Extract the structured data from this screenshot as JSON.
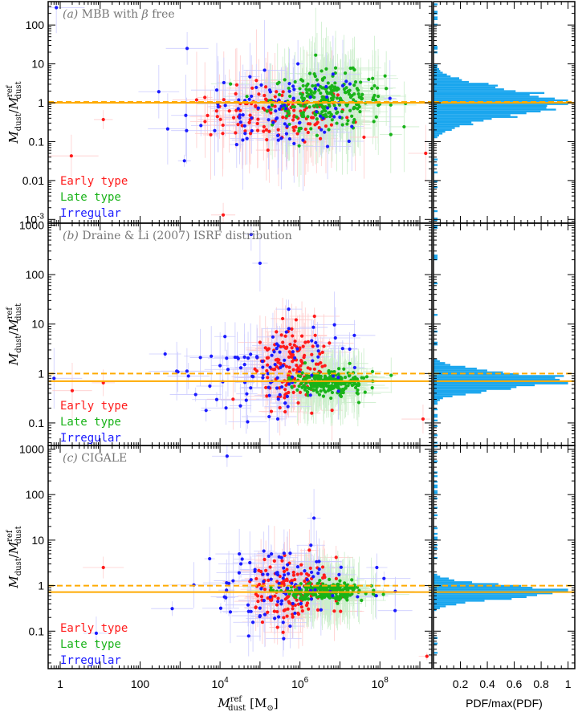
{
  "colors": {
    "early": "#ff1a1a",
    "late": "#19b319",
    "irregular": "#1a1aff",
    "ref_line": "#ffaa00",
    "hist": "#1aa6ee",
    "frame": "#000000"
  },
  "x_axis": {
    "label_main": "M",
    "label_sup": "ref",
    "label_sub": "dust",
    "label_unit": "[M",
    "label_unit_sub": "⊙",
    "label_unit_close": "]",
    "ticks": [
      {
        "v": 1,
        "label": "1"
      },
      {
        "v": 100,
        "label": "100"
      },
      {
        "v": 10000,
        "label": "10"
      },
      {
        "v": 1000000,
        "label": "10"
      },
      {
        "v": 100000000,
        "label": "10"
      }
    ],
    "tick_exponents": [
      "",
      "",
      "4",
      "6",
      "8"
    ],
    "xlim": [
      0.5,
      2000000000
    ],
    "scale": "log"
  },
  "hist_axis": {
    "label": "PDF/max(PDF)",
    "ticks": [
      "0.2",
      "0.4",
      "0.6",
      "0.8",
      "1"
    ],
    "xlim": [
      0,
      1.05
    ]
  },
  "y_axis_label": {
    "main": "M",
    "sub": "dust",
    "slash": "/",
    "main2": "M",
    "sup2": "ref",
    "sub2": "dust"
  },
  "legend": [
    {
      "label": "Early type",
      "color_key": "early"
    },
    {
      "label": "Late type",
      "color_key": "late"
    },
    {
      "label": "Irregular",
      "color_key": "irregular"
    }
  ],
  "chart_data": [
    {
      "type": "scatter",
      "title": "(a) MBB with β free",
      "title_letter": "(a)",
      "title_text": "MBB with",
      "title_greek": "β",
      "title_tail": "free",
      "yscale": "log",
      "ylim": [
        0.0008,
        400
      ],
      "yticks": [
        {
          "v": 100,
          "label": "100"
        },
        {
          "v": 10,
          "label": "10"
        },
        {
          "v": 1,
          "label": "1"
        },
        {
          "v": 0.1,
          "label": "0.1"
        },
        {
          "v": 0.01,
          "label": "0.01"
        },
        {
          "v": 0.001,
          "label": "10",
          "exp": "-3"
        }
      ],
      "ref_line_solid": 1.0,
      "ref_line_dashed": 1.05,
      "cloud": {
        "early": [
          300000,
          0.5
        ],
        "late": [
          5000000,
          1.2
        ],
        "irregular": [
          400000,
          0.6
        ]
      },
      "spread": {
        "early": [
          0.9,
          0.35
        ],
        "late": [
          0.7,
          0.35
        ],
        "irregular": [
          1.1,
          0.5
        ]
      },
      "counts": {
        "early": 140,
        "late": 260,
        "irregular": 90
      },
      "outliers": [
        {
          "x": 0.8,
          "y": 280,
          "c": "irregular"
        },
        {
          "x": 1.9,
          "y": 0.043,
          "c": "early"
        },
        {
          "x": 12,
          "y": 0.37,
          "c": "early"
        },
        {
          "x": 1500,
          "y": 25,
          "c": "irregular"
        },
        {
          "x": 40000000,
          "y": 0.13,
          "c": "early"
        },
        {
          "x": 1400000000,
          "y": 0.05,
          "c": "early"
        },
        {
          "x": 12000,
          "y": 0.0013,
          "c": "early"
        }
      ],
      "hist": {
        "peak": 1.0,
        "width": 0.34
      }
    },
    {
      "type": "scatter",
      "title": "(b) Draine & Li (2007) ISRF distribution",
      "title_letter": "(b)",
      "title_text": "Draine & Li (2007) ISRF distribution",
      "yscale": "log",
      "ylim": [
        0.035,
        1100
      ],
      "yticks": [
        {
          "v": 1000,
          "label": "1000"
        },
        {
          "v": 100,
          "label": "100"
        },
        {
          "v": 10,
          "label": "10"
        },
        {
          "v": 1,
          "label": "1"
        },
        {
          "v": 0.1,
          "label": "0.1"
        }
      ],
      "ref_line_solid": 0.7,
      "ref_line_dashed": 1.0,
      "cloud": {
        "early": [
          600000,
          1.6
        ],
        "late": [
          5000000,
          0.65
        ],
        "irregular": [
          200000,
          1.5
        ]
      },
      "spread": {
        "early": [
          0.45,
          0.4
        ],
        "late": [
          0.45,
          0.12
        ],
        "irregular": [
          1.0,
          0.45
        ]
      },
      "counts": {
        "early": 150,
        "late": 260,
        "irregular": 95
      },
      "outliers": [
        {
          "x": 0.7,
          "y": 0.8,
          "c": "irregular"
        },
        {
          "x": 2,
          "y": 0.45,
          "c": "early"
        },
        {
          "x": 12,
          "y": 0.65,
          "c": "early"
        },
        {
          "x": 60000,
          "y": 650,
          "c": "irregular"
        },
        {
          "x": 100000,
          "y": 170,
          "c": "irregular"
        },
        {
          "x": 1200000000,
          "y": 0.12,
          "c": "early"
        }
      ],
      "hist": {
        "peak": 0.72,
        "width": 0.16
      }
    },
    {
      "type": "scatter",
      "title": "(c) CIGALE",
      "title_letter": "(c)",
      "title_text": "CIGALE",
      "yscale": "log",
      "ylim": [
        0.015,
        1200
      ],
      "yticks": [
        {
          "v": 1000,
          "label": "1000"
        },
        {
          "v": 100,
          "label": "100"
        },
        {
          "v": 10,
          "label": "10"
        },
        {
          "v": 1,
          "label": "1"
        },
        {
          "v": 0.1,
          "label": "0.1"
        }
      ],
      "ref_line_solid": 0.72,
      "ref_line_dashed": 1.0,
      "cloud": {
        "early": [
          600000,
          0.8
        ],
        "late": [
          4000000,
          0.75
        ],
        "irregular": [
          300000,
          0.9
        ]
      },
      "spread": {
        "early": [
          0.45,
          0.35
        ],
        "late": [
          0.5,
          0.1
        ],
        "irregular": [
          1.0,
          0.4
        ]
      },
      "counts": {
        "early": 150,
        "late": 260,
        "irregular": 95
      },
      "outliers": [
        {
          "x": 12,
          "y": 2.5,
          "c": "early"
        },
        {
          "x": 15000,
          "y": 700,
          "c": "irregular"
        },
        {
          "x": 1500000000,
          "y": 0.028,
          "c": "early"
        },
        {
          "x": 8,
          "y": 0.09,
          "c": "irregular"
        }
      ],
      "hist": {
        "peak": 0.72,
        "width": 0.14
      }
    }
  ]
}
